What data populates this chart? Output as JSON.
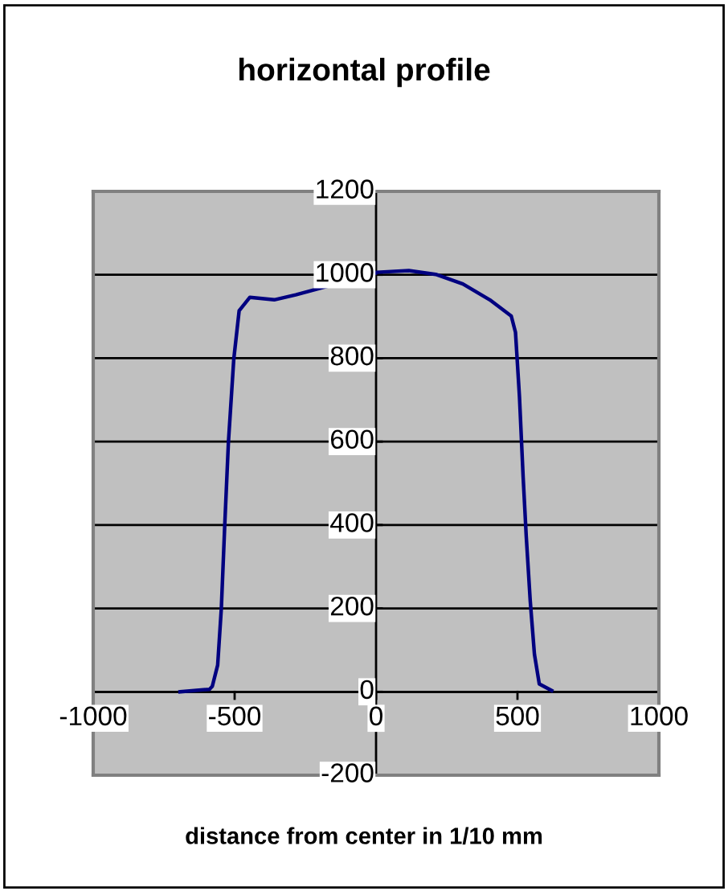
{
  "chart_data": {
    "type": "line",
    "title": "horizontal profile",
    "xlabel": "distance from center in 1/10 mm",
    "xlim": [
      -1000,
      1000
    ],
    "xticks": [
      -1000,
      -500,
      0,
      500,
      1000
    ],
    "ylim": [
      -200,
      1200
    ],
    "yticks": [
      -200,
      0,
      200,
      400,
      600,
      800,
      1000,
      1200
    ],
    "grid": "y",
    "legend": false,
    "marker": "none",
    "line_style": "solid",
    "series": [
      {
        "color": "#000080",
        "x": [
          -693,
          -589,
          -579,
          -560,
          -547,
          -535,
          -522,
          -503,
          -484,
          -446,
          -360,
          -284,
          0,
          2,
          116,
          211,
          307,
          402,
          478,
          493,
          507,
          520,
          531,
          545,
          560,
          577,
          621
        ],
        "values": [
          0,
          6,
          13,
          64,
          200,
          399,
          598,
          798,
          914,
          946,
          940,
          952,
          1004,
          1006,
          1010,
          1001,
          978,
          940,
          901,
          862,
          708,
          515,
          373,
          219,
          90,
          19,
          3
        ]
      }
    ]
  }
}
